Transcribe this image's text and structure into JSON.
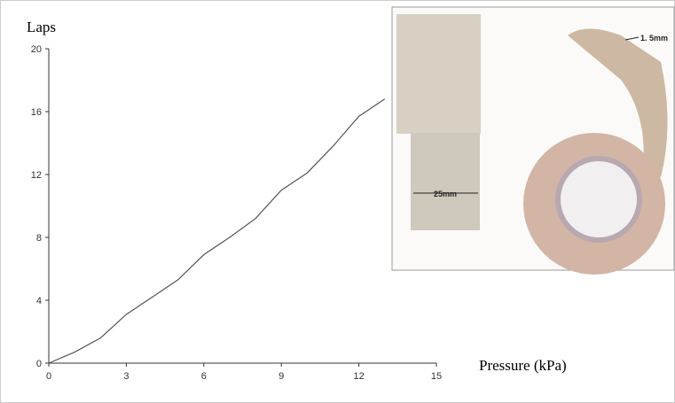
{
  "chart_data": {
    "type": "line",
    "x_label": "Pressure (kPa)",
    "y_label": "Laps",
    "x": [
      0,
      1,
      2,
      3,
      4,
      5,
      6,
      7,
      8,
      9,
      10,
      11,
      12,
      13
    ],
    "series": [
      {
        "name": null,
        "color": "#555555",
        "values": [
          0,
          0.7,
          1.6,
          3.1,
          4.2,
          5.3,
          6.9,
          8.0,
          9.2,
          11.0,
          12.1,
          13.8,
          15.7,
          16.8
        ]
      }
    ],
    "xlim": [
      0,
      15
    ],
    "xticks": [
      0,
      3,
      6,
      9,
      12,
      15
    ],
    "ylim": [
      0,
      20
    ],
    "yticks": [
      0,
      4,
      8,
      12,
      16,
      20
    ],
    "grid": false,
    "annotations": [
      "25mm",
      "1. 5mm"
    ]
  }
}
